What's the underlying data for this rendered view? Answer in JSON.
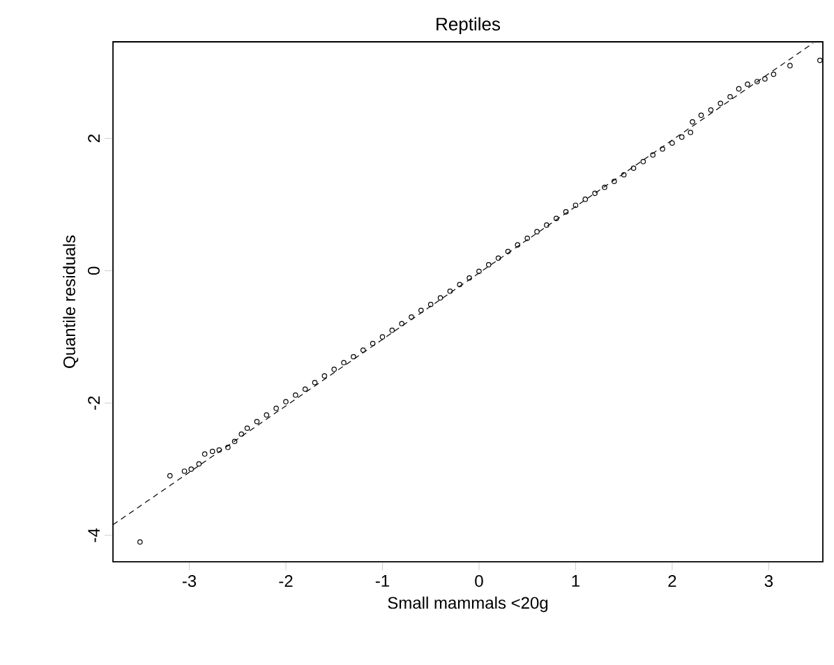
{
  "chart_data": {
    "type": "scatter",
    "title": "Reptiles",
    "xlabel": "Small mammals <20g",
    "ylabel": "Quantile residuals",
    "xlim": [
      -3.79,
      3.56
    ],
    "ylim": [
      -4.4,
      3.46
    ],
    "xticks": [
      -3,
      -2,
      -1,
      0,
      1,
      2,
      3
    ],
    "yticks": [
      -4,
      -2,
      0,
      2
    ],
    "grid": false,
    "series": [
      {
        "color": "#000000",
        "marker": "circle",
        "x": [
          -3.51,
          -3.2,
          -3.05,
          -2.98,
          -2.9,
          -2.84,
          -2.76,
          -2.69,
          -2.6,
          -2.53,
          -2.46,
          -2.4,
          -2.3,
          -2.2,
          -2.1,
          -2.0,
          -1.9,
          -1.8,
          -1.7,
          -1.6,
          -1.5,
          -1.4,
          -1.3,
          -1.2,
          -1.1,
          -1.0,
          -0.9,
          -0.8,
          -0.7,
          -0.6,
          -0.5,
          -0.4,
          -0.3,
          -0.2,
          -0.1,
          0.0,
          0.1,
          0.2,
          0.3,
          0.4,
          0.5,
          0.6,
          0.7,
          0.8,
          0.9,
          1.0,
          1.1,
          1.2,
          1.3,
          1.4,
          1.5,
          1.6,
          1.7,
          1.8,
          1.9,
          2.0,
          2.1,
          2.19,
          2.21,
          2.3,
          2.4,
          2.5,
          2.6,
          2.69,
          2.78,
          2.88,
          2.96,
          3.05,
          3.22,
          3.53
        ],
        "values": [
          -4.1,
          -3.1,
          -3.03,
          -3.0,
          -2.92,
          -2.77,
          -2.73,
          -2.71,
          -2.67,
          -2.58,
          -2.47,
          -2.38,
          -2.28,
          -2.18,
          -2.08,
          -1.98,
          -1.88,
          -1.79,
          -1.69,
          -1.59,
          -1.49,
          -1.39,
          -1.3,
          -1.2,
          -1.1,
          -1.0,
          -0.9,
          -0.8,
          -0.7,
          -0.6,
          -0.51,
          -0.41,
          -0.31,
          -0.21,
          -0.11,
          -0.01,
          0.09,
          0.19,
          0.29,
          0.39,
          0.49,
          0.59,
          0.69,
          0.79,
          0.89,
          0.99,
          1.08,
          1.17,
          1.26,
          1.35,
          1.45,
          1.55,
          1.65,
          1.75,
          1.84,
          1.93,
          2.02,
          2.09,
          2.25,
          2.35,
          2.43,
          2.53,
          2.63,
          2.75,
          2.82,
          2.86,
          2.9,
          2.97,
          3.1,
          3.18
        ]
      },
      {
        "type": "line",
        "color": "#000000",
        "marker": "none",
        "line_style": "dashed",
        "x": [
          -3.79,
          3.46
        ],
        "values": [
          -3.84,
          3.44
        ]
      }
    ]
  }
}
